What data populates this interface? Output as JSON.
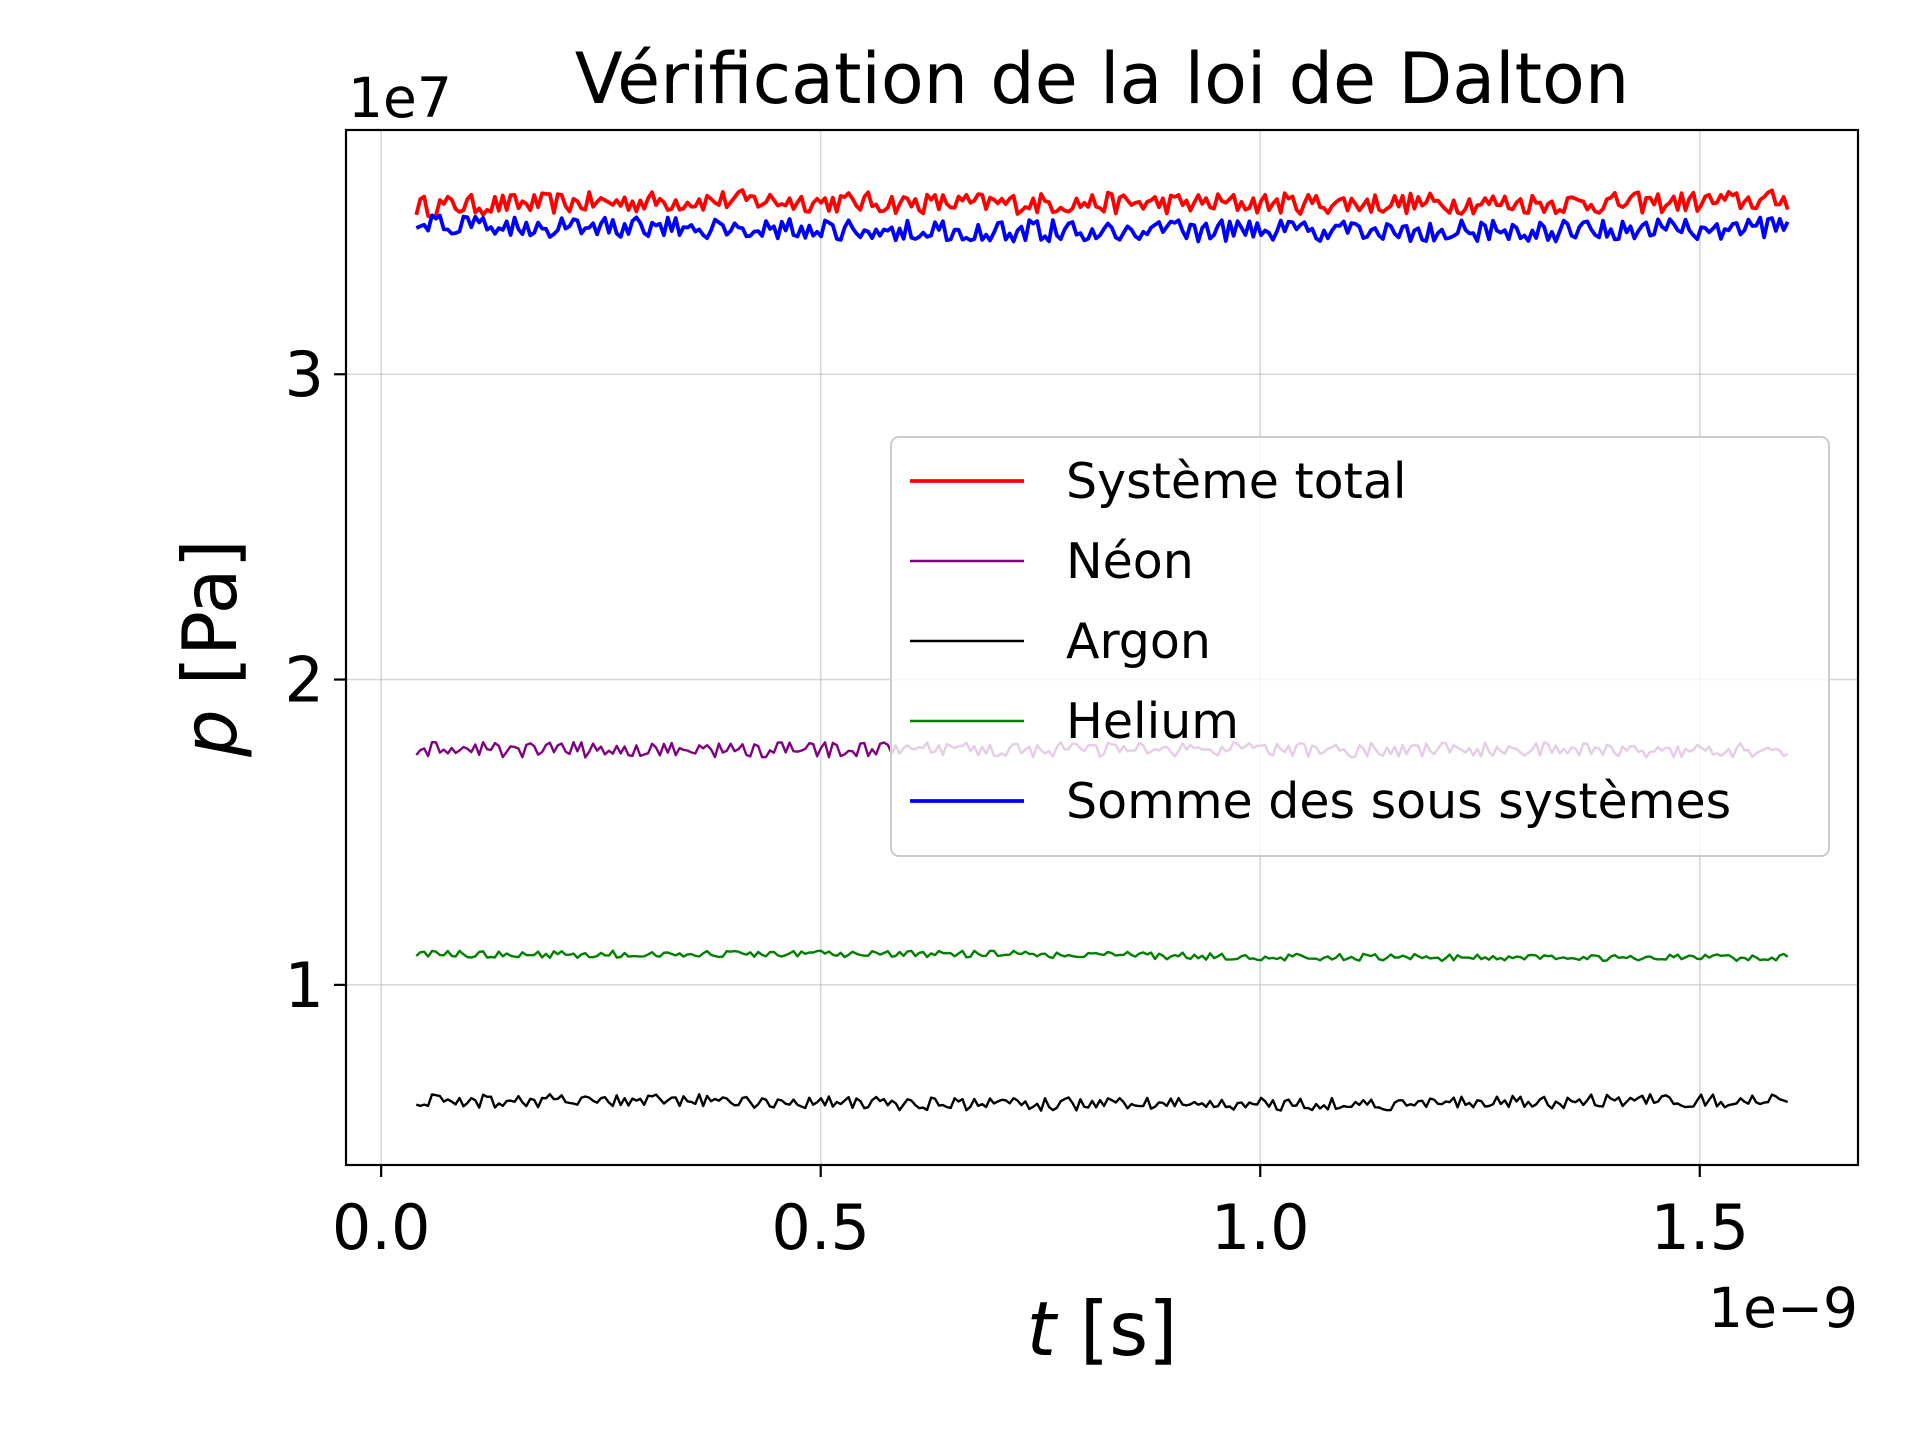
{
  "chart_data": {
    "type": "line",
    "title": "Vérification de la loi de Dalton",
    "xlabel_var": "t",
    "xlabel_unit": "[s]",
    "ylabel_var": "p",
    "ylabel_unit": "[Pa]",
    "x_offset_label": "1e−9",
    "y_offset_label": "1e7",
    "x_scale": 1e-09,
    "y_scale": 10000000.0,
    "xlim": [
      -0.04,
      1.68
    ],
    "ylim": [
      0.41,
      3.8
    ],
    "xticks": [
      0.0,
      0.5,
      1.0,
      1.5
    ],
    "xtick_labels": [
      "0.0",
      "0.5",
      "1.0",
      "1.5"
    ],
    "yticks": [
      1,
      2,
      3
    ],
    "ytick_labels": [
      "1",
      "2",
      "3"
    ],
    "grid": true,
    "legend_position": "center-right",
    "x": [
      0.04,
      0.2,
      0.4,
      0.6,
      0.8,
      1.0,
      1.2,
      1.4,
      1.6
    ],
    "series": [
      {
        "name": "Système total",
        "color": "#ff0000",
        "width": "thick",
        "noise": 0.035,
        "values": [
          3.55,
          3.56,
          3.57,
          3.56,
          3.56,
          3.56,
          3.56,
          3.56,
          3.57
        ]
      },
      {
        "name": "Néon",
        "color": "#800080",
        "width": "thin",
        "noise": 0.025,
        "values": [
          1.77,
          1.77,
          1.77,
          1.77,
          1.77,
          1.77,
          1.77,
          1.77,
          1.77
        ]
      },
      {
        "name": "Argon",
        "color": "#000000",
        "width": "thin",
        "noise": 0.022,
        "values": [
          0.62,
          0.62,
          0.62,
          0.61,
          0.61,
          0.61,
          0.61,
          0.62,
          0.62
        ]
      },
      {
        "name": "Helium",
        "color": "#008000",
        "width": "thin",
        "noise": 0.012,
        "values": [
          1.1,
          1.1,
          1.1,
          1.1,
          1.1,
          1.09,
          1.09,
          1.09,
          1.09
        ]
      },
      {
        "name": "Somme des sous systèmes",
        "color": "#0000ff",
        "width": "thick",
        "noise": 0.035,
        "values": [
          3.49,
          3.48,
          3.48,
          3.47,
          3.47,
          3.47,
          3.47,
          3.47,
          3.48
        ]
      }
    ]
  }
}
